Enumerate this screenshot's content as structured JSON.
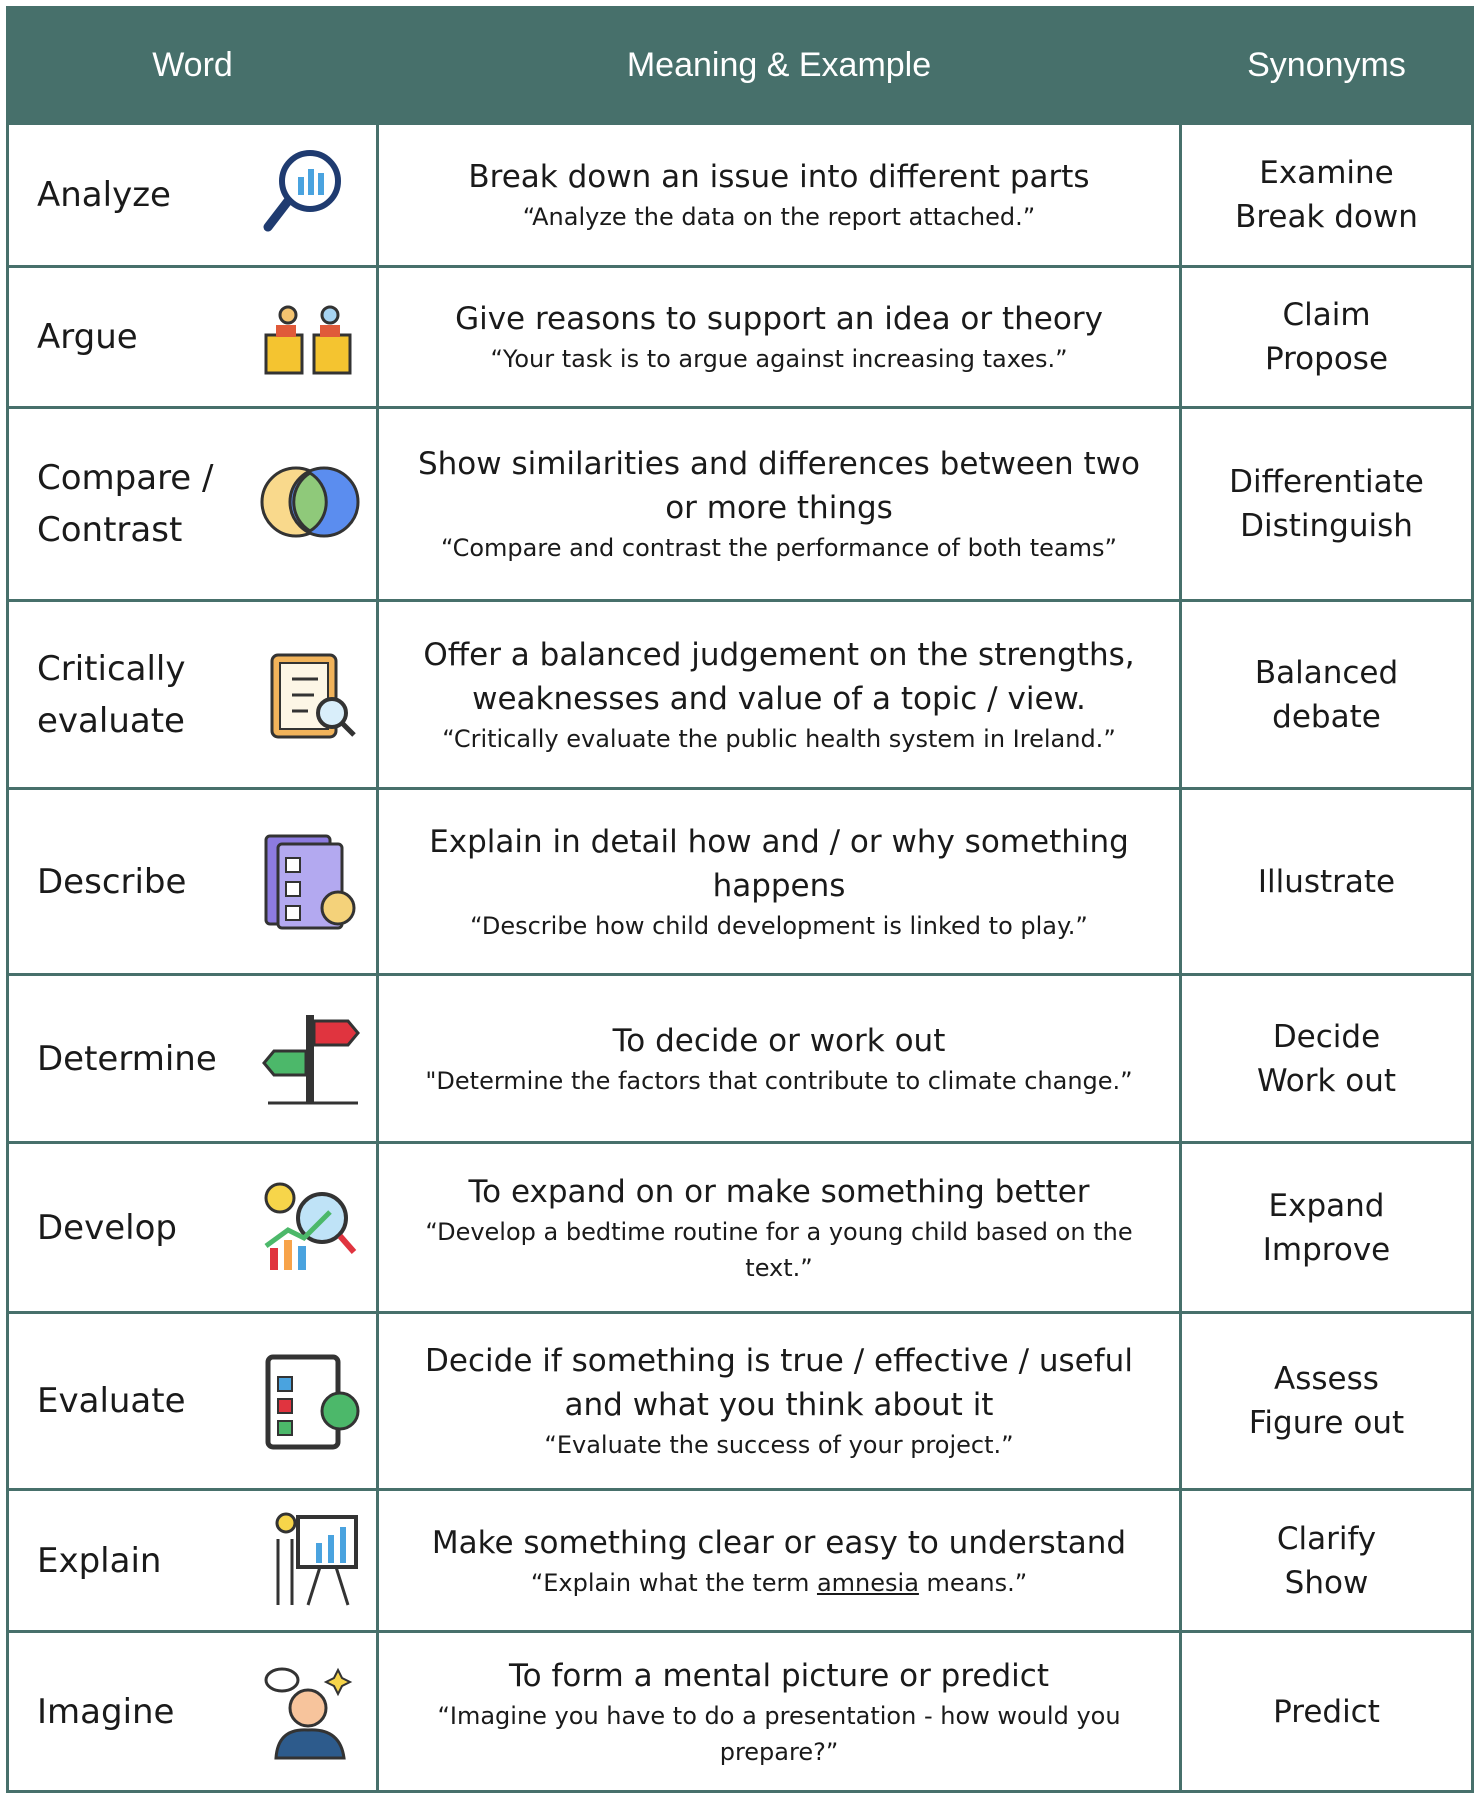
{
  "header": [
    "Word",
    "Meaning & Example",
    "Synonyms"
  ],
  "rows": [
    {
      "word": "Analyze",
      "meaning": "Break down an issue into different parts",
      "example": "“Analyze the data on the report attached.”",
      "synonyms": [
        "Examine",
        "Break down"
      ]
    },
    {
      "word": "Argue",
      "meaning": "Give reasons to support an idea or theory",
      "example": "“Your task is to argue against increasing taxes.”",
      "synonyms": [
        "Claim",
        "Propose"
      ]
    },
    {
      "word": "Compare / Contrast",
      "meaning": "Show similarities and differences between two or more things",
      "example": "“Compare and contrast the performance of both teams”",
      "synonyms": [
        "Differentiate",
        "Distinguish"
      ]
    },
    {
      "word": "Critically evaluate",
      "meaning": "Offer a balanced judgement on the strengths, weaknesses and value of a topic / view.",
      "example": "“Critically evaluate the public health system in Ireland.”",
      "synonyms": [
        "Balanced",
        "debate"
      ]
    },
    {
      "word": "Describe",
      "meaning": "Explain in detail how and / or why something happens",
      "example": "“Describe how child development is linked to play.”",
      "synonyms": [
        "Illustrate"
      ]
    },
    {
      "word": "Determine",
      "meaning": "To decide or work out",
      "example": "\"Determine the factors that contribute to climate change.”",
      "synonyms": [
        "Decide",
        "Work out"
      ]
    },
    {
      "word": "Develop",
      "meaning": "To expand on or make something better",
      "example": "“Develop a bedtime routine for a young child based on the text.”",
      "synonyms": [
        "Expand",
        "Improve"
      ]
    },
    {
      "word": "Evaluate",
      "meaning": "Decide if something is true / effective / useful and what you think about it",
      "example": "“Evaluate the success of your project.”",
      "synonyms": [
        "Assess",
        "Figure out"
      ]
    },
    {
      "word": "Explain",
      "meaning": "Make something clear or easy to understand",
      "example_parts": [
        "“Explain what the term ",
        "amnesia",
        " means.”"
      ],
      "synonyms": [
        "Clarify",
        "Show"
      ]
    },
    {
      "word": "Imagine",
      "meaning": "To form a mental picture or predict",
      "example": "“Imagine you have to do a presentation - how would you prepare?”",
      "synonyms": [
        "Predict"
      ]
    }
  ]
}
